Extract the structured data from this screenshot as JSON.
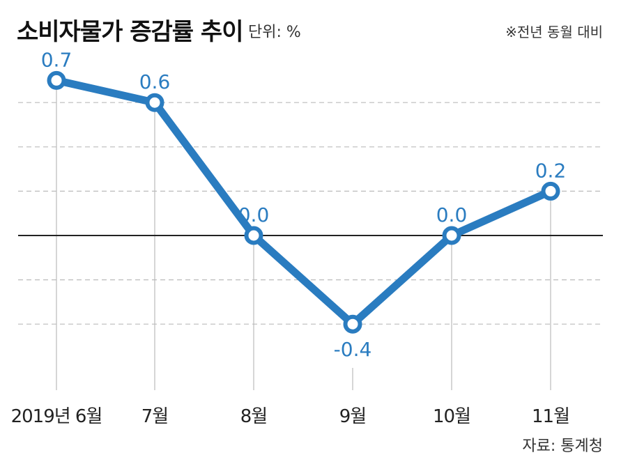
{
  "header": {
    "title": "소비자물가 증감률 추이",
    "unit": "단위: %",
    "note": "※전년 동월 대비"
  },
  "footer": {
    "source": "자료: 통계청"
  },
  "colors": {
    "line": "#2a7cc0",
    "grid": "#bbbbbb",
    "zero_line": "#222222"
  },
  "chart_data": {
    "type": "line",
    "title": "소비자물가 증감률 추이",
    "ylabel": "단위: %",
    "categories": [
      "2019년 6월",
      "7월",
      "8월",
      "9월",
      "10월",
      "11월"
    ],
    "series": [
      {
        "values": [
          0.7,
          0.6,
          0.0,
          -0.4,
          0.0,
          0.2
        ]
      }
    ],
    "data_labels": [
      "0.7",
      "0.6",
      "0.0",
      "-0.4",
      "0.0",
      "0.2"
    ],
    "ylim": [
      -0.7,
      0.7
    ],
    "gridlines": [
      0.6,
      0.4,
      0.2,
      -0.2,
      -0.4
    ],
    "grid": true,
    "legend": "none"
  }
}
